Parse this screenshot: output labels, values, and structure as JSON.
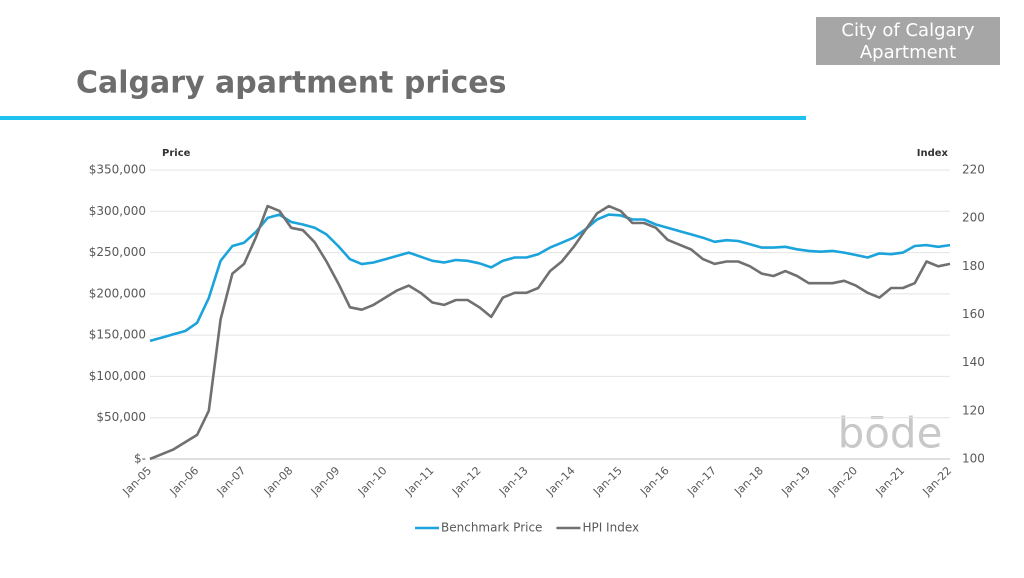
{
  "chart_data": {
    "type": "line",
    "title": "Calgary apartment prices",
    "tag": [
      "City of Calgary",
      "Apartment"
    ],
    "watermark": "bōde",
    "ylabel": "Price",
    "y2label": "Index",
    "categories": [
      "Jan-05",
      null,
      null,
      null,
      "Jan-06",
      null,
      null,
      null,
      "Jan-07",
      null,
      null,
      null,
      "Jan-08",
      null,
      null,
      null,
      "Jan-09",
      null,
      null,
      null,
      "Jan-10",
      null,
      null,
      null,
      "Jan-11",
      null,
      null,
      null,
      "Jan-12",
      null,
      null,
      null,
      "Jan-13",
      null,
      null,
      null,
      "Jan-14",
      null,
      null,
      null,
      "Jan-15",
      null,
      null,
      null,
      "Jan-16",
      null,
      null,
      null,
      "Jan-17",
      null,
      null,
      null,
      "Jan-18",
      null,
      null,
      null,
      "Jan-19",
      null,
      null,
      null,
      "Jan-20",
      null,
      null,
      null,
      "Jan-21",
      null,
      null,
      null,
      "Jan-22"
    ],
    "series": [
      {
        "name": "Benchmark Price",
        "color": "#1ba3dc",
        "values": [
          143000,
          147000,
          151000,
          155000,
          165000,
          195000,
          240000,
          258000,
          262000,
          275000,
          292000,
          296000,
          287000,
          284000,
          280000,
          272000,
          258000,
          242000,
          236000,
          238000,
          242000,
          246000,
          250000,
          245000,
          240000,
          238000,
          241000,
          240000,
          237000,
          232000,
          240000,
          244000,
          244000,
          248000,
          256000,
          262000,
          268000,
          278000,
          290000,
          296000,
          295000,
          290000,
          290000,
          284000,
          280000,
          276000,
          272000,
          268000,
          263000,
          265000,
          264000,
          260000,
          256000,
          256000,
          257000,
          254000,
          252000,
          251000,
          252000,
          250000,
          247000,
          244000,
          249000,
          248000,
          250000,
          258000,
          259000,
          257000,
          259000
        ]
      },
      {
        "name": "HPI Index",
        "color": "#707070",
        "axis": "y2",
        "values": [
          100,
          102,
          104,
          107,
          110,
          120,
          158,
          177,
          181,
          192,
          205,
          203,
          196,
          195,
          190,
          182,
          173,
          163,
          162,
          164,
          167,
          170,
          172,
          169,
          165,
          164,
          166,
          166,
          163,
          159,
          167,
          169,
          169,
          171,
          178,
          182,
          188,
          195,
          202,
          205,
          203,
          198,
          198,
          196,
          191,
          189,
          187,
          183,
          181,
          182,
          182,
          180,
          177,
          176,
          178,
          176,
          173,
          173,
          173,
          174,
          172,
          169,
          167,
          171,
          171,
          173,
          182,
          180,
          181
        ]
      }
    ],
    "ylim": [
      0,
      350000
    ],
    "yticks": [
      {
        "value": 0,
        "label": "$-"
      },
      {
        "value": 50000,
        "label": "$50,000"
      },
      {
        "value": 100000,
        "label": "$100,000"
      },
      {
        "value": 150000,
        "label": "$150,000"
      },
      {
        "value": 200000,
        "label": "$200,000"
      },
      {
        "value": 250000,
        "label": "$250,000"
      },
      {
        "value": 300000,
        "label": "$300,000"
      },
      {
        "value": 350000,
        "label": "$350,000"
      }
    ],
    "y2lim": [
      100,
      220
    ],
    "y2ticks": [
      100,
      120,
      140,
      160,
      180,
      200,
      220
    ],
    "grid": true
  }
}
